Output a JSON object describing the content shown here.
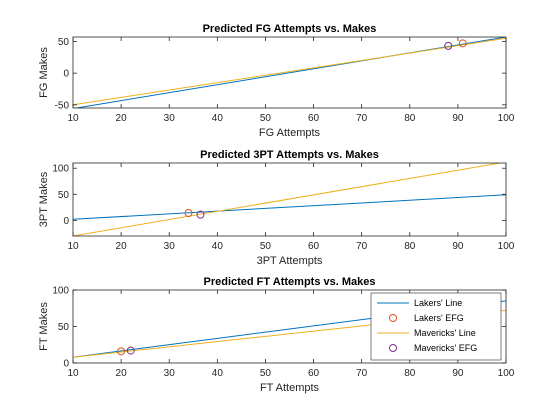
{
  "colors": {
    "lakers": "#0072BD",
    "mavericks": "#EDB120",
    "lakers_marker": "#D95319",
    "mavericks_marker": "#7E2F8E",
    "axis": "#262626"
  },
  "legend": {
    "placement": "bottom-right of third chart",
    "entries": [
      {
        "label": "Lakers' Line",
        "kind": "line",
        "color_key": "lakers"
      },
      {
        "label": "Lakers' EFG",
        "kind": "circle",
        "color_key": "lakers_marker"
      },
      {
        "label": "Mavericks' Line",
        "kind": "line",
        "color_key": "mavericks"
      },
      {
        "label": "Mavericks' EFG",
        "kind": "circle",
        "color_key": "mavericks_marker"
      }
    ]
  },
  "chart_data": [
    {
      "type": "line",
      "title": "Predicted FG Attempts vs. Makes",
      "xlabel": "FG Attempts",
      "ylabel": "FG Makes",
      "xlim": [
        10,
        100
      ],
      "ylim": [
        -55,
        57
      ],
      "xticks": [
        10,
        20,
        30,
        40,
        50,
        60,
        70,
        80,
        90,
        100
      ],
      "yticks": [
        -50,
        0,
        50
      ],
      "series": [
        {
          "name": "Lakers' Line",
          "color_key": "lakers",
          "x": [
            10,
            100
          ],
          "y": [
            -56,
            57
          ]
        },
        {
          "name": "Mavericks' Line",
          "color_key": "mavericks",
          "x": [
            10,
            100
          ],
          "y": [
            -50,
            55
          ]
        }
      ],
      "markers": [
        {
          "name": "Lakers' EFG",
          "color_key": "lakers_marker",
          "x": 91,
          "y": 47
        },
        {
          "name": "Mavericks' EFG",
          "color_key": "mavericks_marker",
          "x": 88,
          "y": 43
        }
      ]
    },
    {
      "type": "line",
      "title": "Predicted 3PT Attempts vs. Makes",
      "xlabel": "3PT Attempts",
      "ylabel": "3PT Makes",
      "xlim": [
        10,
        100
      ],
      "ylim": [
        -30,
        110
      ],
      "xticks": [
        10,
        20,
        30,
        40,
        50,
        60,
        70,
        80,
        90,
        100
      ],
      "yticks": [
        0,
        50,
        100
      ],
      "series": [
        {
          "name": "Lakers' Line",
          "color_key": "lakers",
          "x": [
            10,
            100
          ],
          "y": [
            2,
            49
          ]
        },
        {
          "name": "Mavericks' Line",
          "color_key": "mavericks",
          "x": [
            10,
            100
          ],
          "y": [
            -30,
            112
          ]
        }
      ],
      "markers": [
        {
          "name": "Lakers' EFG",
          "color_key": "lakers_marker",
          "x": 34,
          "y": 14
        },
        {
          "name": "Mavericks' EFG",
          "color_key": "mavericks_marker",
          "x": 36.5,
          "y": 11
        }
      ]
    },
    {
      "type": "line",
      "title": "Predicted FT Attempts vs. Makes",
      "xlabel": "FT Attempts",
      "ylabel": "FT Makes",
      "xlim": [
        10,
        100
      ],
      "ylim": [
        0,
        100
      ],
      "xticks": [
        10,
        20,
        30,
        40,
        50,
        60,
        70,
        80,
        90,
        100
      ],
      "yticks": [
        0,
        50,
        100
      ],
      "series": [
        {
          "name": "Lakers' Line",
          "color_key": "lakers",
          "x": [
            10,
            100
          ],
          "y": [
            8,
            85
          ]
        },
        {
          "name": "Mavericks' Line",
          "color_key": "mavericks",
          "x": [
            10,
            100
          ],
          "y": [
            8,
            72
          ]
        }
      ],
      "markers": [
        {
          "name": "Lakers' EFG",
          "color_key": "lakers_marker",
          "x": 20,
          "y": 16
        },
        {
          "name": "Mavericks' EFG",
          "color_key": "mavericks_marker",
          "x": 22,
          "y": 17
        }
      ]
    }
  ]
}
